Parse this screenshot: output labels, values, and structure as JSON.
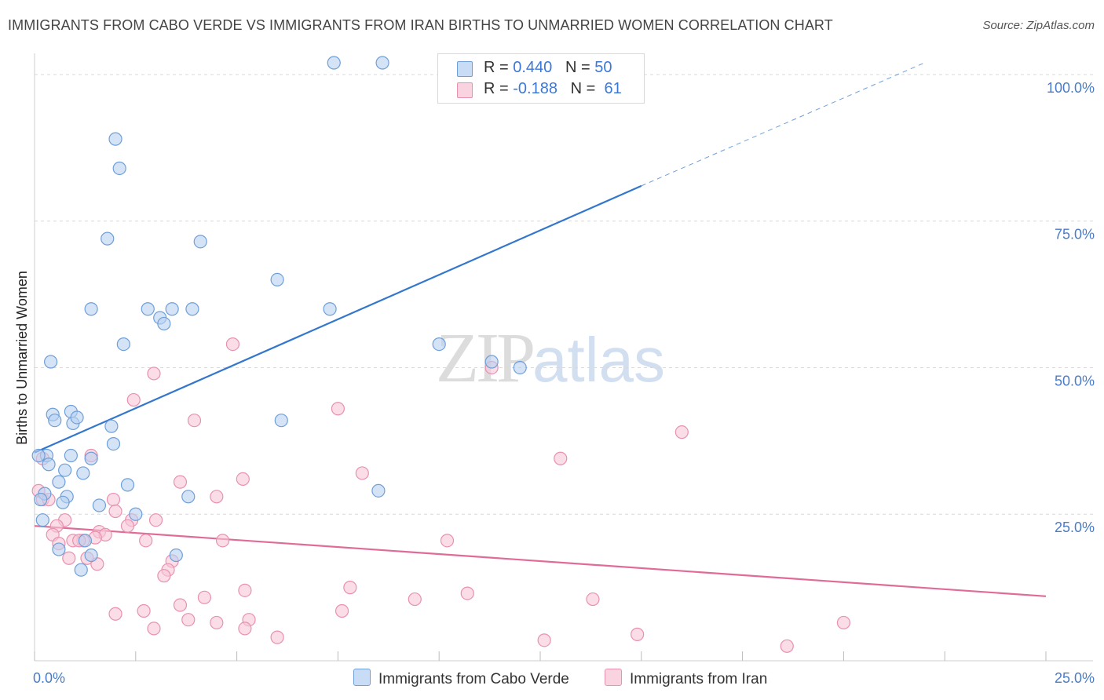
{
  "title": "IMMIGRANTS FROM CABO VERDE VS IMMIGRANTS FROM IRAN BIRTHS TO UNMARRIED WOMEN CORRELATION CHART",
  "source": "Source: ZipAtlas.com",
  "watermark": {
    "zip": "ZIP",
    "atlas": "atlas"
  },
  "legend": {
    "rows": [
      {
        "r_label": "R =",
        "r_value": "0.440",
        "n_label": "N =",
        "n_value": "50"
      },
      {
        "r_label": "R =",
        "r_value": "-0.188",
        "n_label": "N =",
        "n_value": "61"
      }
    ]
  },
  "colors": {
    "blue_fill": "#b7d0f0",
    "blue_stroke": "#6f9fd8",
    "blue_line": "#3377cc",
    "pink_fill": "#f7c6d6",
    "pink_stroke": "#e891b0",
    "pink_line": "#e06b96",
    "grid": "#d9d9d9",
    "tick_text": "#4a7cc7"
  },
  "chart_data": {
    "type": "scatter",
    "title": "IMMIGRANTS FROM CABO VERDE VS IMMIGRANTS FROM IRAN BIRTHS TO UNMARRIED WOMEN CORRELATION CHART",
    "xlabel": "",
    "ylabel": "Births to Unmarried Women",
    "xlim": [
      0,
      25
    ],
    "ylim": [
      0,
      102
    ],
    "x_tick_labels": [
      {
        "value": 0,
        "label": "0.0%"
      },
      {
        "value": 25,
        "label": "25.0%"
      }
    ],
    "y_tick_labels": [
      {
        "value": 25,
        "label": "25.0%"
      },
      {
        "value": 50,
        "label": "50.0%"
      },
      {
        "value": 75,
        "label": "75.0%"
      },
      {
        "value": 100,
        "label": "100.0%"
      }
    ],
    "grid": true,
    "legend_position": "top-center",
    "series": [
      {
        "name": "Immigrants from Cabo Verde",
        "color": "#6f9fd8",
        "trend": {
          "x_start": 0,
          "y_start": 35.5,
          "x_solid_end": 15,
          "y_solid_end": 81.0,
          "x_end": 22.0,
          "y_end": 102.0
        },
        "points": [
          [
            7.4,
            102
          ],
          [
            8.6,
            102
          ],
          [
            2.0,
            89
          ],
          [
            2.1,
            84
          ],
          [
            1.8,
            72
          ],
          [
            4.1,
            71.5
          ],
          [
            6.0,
            65
          ],
          [
            1.4,
            60
          ],
          [
            2.8,
            60
          ],
          [
            3.4,
            60
          ],
          [
            3.9,
            60
          ],
          [
            7.3,
            60
          ],
          [
            3.1,
            58.5
          ],
          [
            3.2,
            57.5
          ],
          [
            2.2,
            54
          ],
          [
            10.0,
            54
          ],
          [
            11.3,
            51
          ],
          [
            12.0,
            50
          ],
          [
            0.4,
            51
          ],
          [
            0.45,
            42
          ],
          [
            0.5,
            41
          ],
          [
            0.9,
            42.5
          ],
          [
            0.95,
            40.5
          ],
          [
            1.05,
            41.5
          ],
          [
            1.9,
            40
          ],
          [
            6.1,
            41
          ],
          [
            1.95,
            37
          ],
          [
            0.3,
            35
          ],
          [
            0.9,
            35
          ],
          [
            1.4,
            34.5
          ],
          [
            0.35,
            33.5
          ],
          [
            0.75,
            32.5
          ],
          [
            1.2,
            32
          ],
          [
            0.6,
            30.5
          ],
          [
            2.3,
            30
          ],
          [
            8.5,
            29
          ],
          [
            0.25,
            28.5
          ],
          [
            0.8,
            28
          ],
          [
            3.8,
            28
          ],
          [
            0.15,
            27.5
          ],
          [
            0.7,
            27
          ],
          [
            1.6,
            26.5
          ],
          [
            2.5,
            25
          ],
          [
            0.2,
            24
          ],
          [
            1.25,
            20.5
          ],
          [
            0.6,
            19
          ],
          [
            3.5,
            18
          ],
          [
            1.4,
            18
          ],
          [
            1.15,
            15.5
          ],
          [
            0.1,
            35
          ]
        ]
      },
      {
        "name": "Immigrants from Iran",
        "color": "#e891b0",
        "trend": {
          "x_start": 0,
          "y_start": 23.0,
          "x_end": 25,
          "y_end": 11.0
        },
        "points": [
          [
            0.2,
            34.5
          ],
          [
            0.1,
            29
          ],
          [
            0.2,
            27.5
          ],
          [
            4.9,
            54
          ],
          [
            2.95,
            49
          ],
          [
            11.3,
            50
          ],
          [
            2.45,
            44.5
          ],
          [
            7.5,
            43
          ],
          [
            3.95,
            41
          ],
          [
            16.0,
            39
          ],
          [
            1.4,
            35
          ],
          [
            13.0,
            34.5
          ],
          [
            8.1,
            32
          ],
          [
            3.6,
            30.5
          ],
          [
            5.15,
            31
          ],
          [
            4.5,
            28
          ],
          [
            1.95,
            27.5
          ],
          [
            0.35,
            27.5
          ],
          [
            2.0,
            25.5
          ],
          [
            2.4,
            24
          ],
          [
            2.3,
            23
          ],
          [
            3.0,
            24
          ],
          [
            0.75,
            24
          ],
          [
            0.55,
            23
          ],
          [
            0.45,
            21.5
          ],
          [
            1.6,
            22
          ],
          [
            1.75,
            21.5
          ],
          [
            1.5,
            21
          ],
          [
            1.2,
            20.5
          ],
          [
            0.95,
            20.5
          ],
          [
            1.1,
            20.5
          ],
          [
            2.75,
            20.5
          ],
          [
            4.65,
            20.5
          ],
          [
            10.2,
            20.5
          ],
          [
            0.6,
            20
          ],
          [
            0.85,
            17.5
          ],
          [
            1.3,
            17.5
          ],
          [
            3.4,
            17
          ],
          [
            1.55,
            16.5
          ],
          [
            3.3,
            15.5
          ],
          [
            3.2,
            14.5
          ],
          [
            5.2,
            12
          ],
          [
            7.8,
            12.5
          ],
          [
            10.7,
            11.5
          ],
          [
            4.2,
            10.8
          ],
          [
            9.4,
            10.5
          ],
          [
            13.8,
            10.5
          ],
          [
            3.6,
            9.5
          ],
          [
            2.0,
            8
          ],
          [
            2.7,
            8.5
          ],
          [
            7.6,
            8.5
          ],
          [
            3.8,
            7
          ],
          [
            4.5,
            6.5
          ],
          [
            5.3,
            7
          ],
          [
            5.2,
            5.5
          ],
          [
            2.95,
            5.5
          ],
          [
            6.0,
            4
          ],
          [
            14.9,
            4.5
          ],
          [
            20.0,
            6.5
          ],
          [
            12.6,
            3.5
          ],
          [
            18.6,
            2.5
          ]
        ]
      }
    ]
  }
}
